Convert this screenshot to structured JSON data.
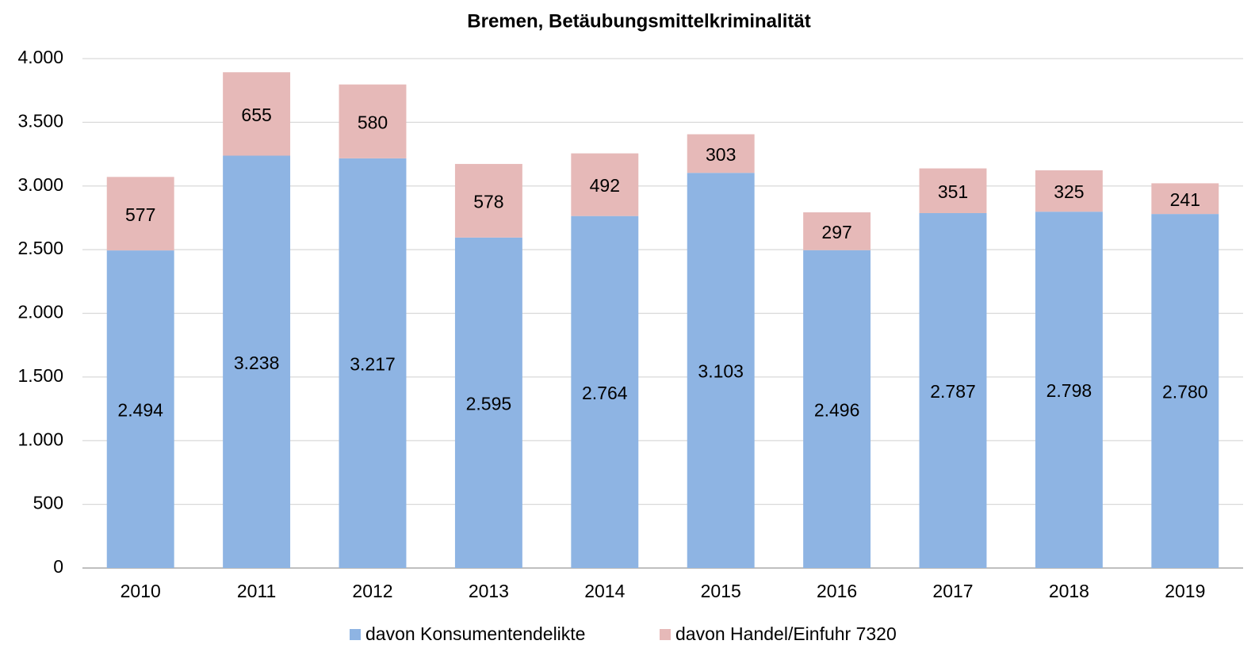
{
  "chart_data": {
    "type": "stacked_bar",
    "title": "Bremen, Betäubungsmittelkriminalität",
    "categories": [
      "2010",
      "2011",
      "2012",
      "2013",
      "2014",
      "2015",
      "2016",
      "2017",
      "2018",
      "2019"
    ],
    "series": [
      {
        "name": "davon Konsumentendelikte",
        "color": "#8eb4e3",
        "values": [
          2494,
          3238,
          3217,
          2595,
          2764,
          3103,
          2496,
          2787,
          2798,
          2780
        ],
        "value_labels": [
          "2.494",
          "3.238",
          "3.217",
          "2.595",
          "2.764",
          "3.103",
          "2.496",
          "2.787",
          "2.798",
          "2.780"
        ]
      },
      {
        "name": "davon Handel/Einfuhr 7320",
        "color": "#e6b9b8",
        "values": [
          577,
          655,
          580,
          578,
          492,
          303,
          297,
          351,
          325,
          241
        ]
      }
    ],
    "ylim": [
      0,
      4000
    ],
    "yticks": [
      0,
      500,
      {
        "value": 1000,
        "label": "1.000"
      },
      {
        "value": 1500,
        "label": "1.500"
      },
      {
        "value": 2000,
        "label": "2.000"
      },
      {
        "value": 2500,
        "label": "2.500"
      },
      {
        "value": 3000,
        "label": "3.000"
      },
      {
        "value": 3500,
        "label": "3.500"
      },
      {
        "value": 4000,
        "label": "4.000"
      }
    ],
    "grid": true,
    "legend": "bottom"
  }
}
